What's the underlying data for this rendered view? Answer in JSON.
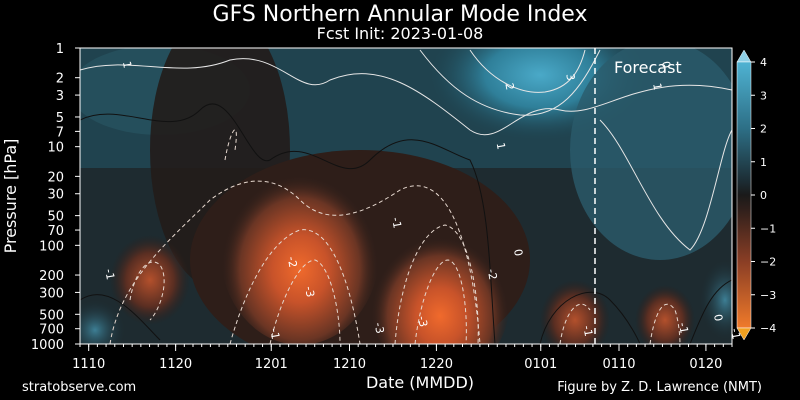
{
  "title": "GFS Northern Annular Mode Index",
  "subtitle": "Fcst Init: 2023-01-08",
  "credit_left": "stratobserve.com",
  "credit_right": "Figure by Z. D. Lawrence (NMT)",
  "chart_data": {
    "type": "heatmap",
    "title": "GFS Northern Annular Mode Index",
    "subtitle": "Fcst Init: 2023-01-08",
    "xlabel": "Date (MMDD)",
    "ylabel": "Pressure [hPa]",
    "x_ticks": [
      "1110",
      "1120",
      "1201",
      "1210",
      "1220",
      "0101",
      "0110",
      "0120"
    ],
    "x_range": [
      "2022-11-09",
      "2023-01-23"
    ],
    "y_ticks": [
      1,
      2,
      3,
      5,
      7,
      10,
      20,
      30,
      50,
      70,
      100,
      200,
      300,
      500,
      700,
      1000
    ],
    "y_scale": "log",
    "y_inverted": true,
    "ylim": [
      1000,
      1
    ],
    "colorbar": {
      "ticks": [
        4,
        3,
        2,
        1,
        0,
        -1,
        -2,
        -3,
        -4
      ],
      "range": [
        -4,
        4
      ],
      "extend": "both",
      "colors_positive": "#4fb3d3",
      "colors_negative": "#e8652a",
      "neutral": "#1c1c1c"
    },
    "forecast_line_date": "2023-01-08",
    "annotation": "Forecast",
    "contour_labels": [
      {
        "x": "1114",
        "p": 1.5,
        "text": "1"
      },
      {
        "x": "1228",
        "p": 2.5,
        "text": "2"
      },
      {
        "x": "0104",
        "p": 2.0,
        "text": "3"
      },
      {
        "x": "1227",
        "p": 10,
        "text": "1"
      },
      {
        "x": "0115",
        "p": 1.5,
        "text": "0"
      },
      {
        "x": "0114",
        "p": 2.5,
        "text": "1"
      },
      {
        "x": "1215",
        "p": 60,
        "text": "-1"
      },
      {
        "x": "1112",
        "p": 200,
        "text": "-1"
      },
      {
        "x": "1203",
        "p": 150,
        "text": "-2"
      },
      {
        "x": "1205",
        "p": 300,
        "text": "-3"
      },
      {
        "x": "1226",
        "p": 200,
        "text": "-2"
      },
      {
        "x": "1229",
        "p": 120,
        "text": "0"
      },
      {
        "x": "1213",
        "p": 700,
        "text": "-3"
      },
      {
        "x": "1201",
        "p": 800,
        "text": "-1"
      },
      {
        "x": "1218",
        "p": 600,
        "text": "-3"
      },
      {
        "x": "0106",
        "p": 750,
        "text": "-1"
      },
      {
        "x": "0117",
        "p": 700,
        "text": "-1"
      },
      {
        "x": "0121",
        "p": 550,
        "text": "0"
      },
      {
        "x": "0123",
        "p": 800,
        "text": "-1"
      }
    ],
    "grid": false
  }
}
